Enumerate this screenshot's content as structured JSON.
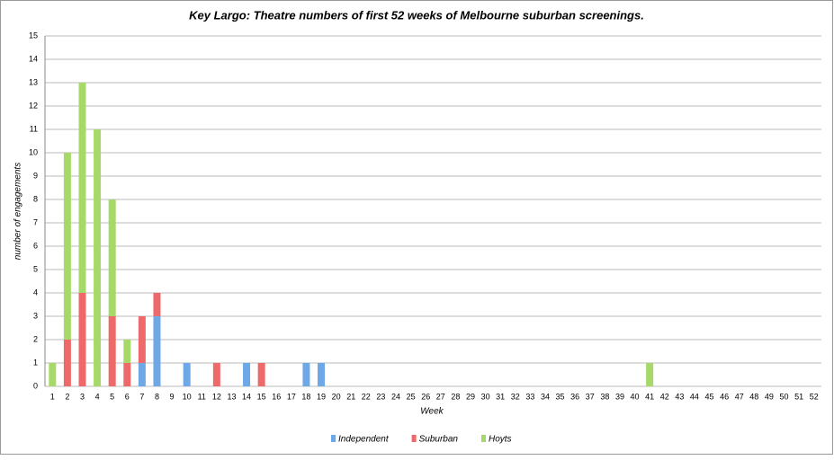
{
  "chart_data": {
    "type": "bar",
    "stacked": true,
    "title": "Key Largo: Theatre numbers of first 52 weeks of Melbourne suburban screenings.",
    "x_label": "Week",
    "y_label": "number of engagements",
    "categories": [
      1,
      2,
      3,
      4,
      5,
      6,
      7,
      8,
      9,
      10,
      11,
      12,
      13,
      14,
      15,
      16,
      17,
      18,
      19,
      20,
      21,
      22,
      23,
      24,
      25,
      26,
      27,
      28,
      29,
      30,
      31,
      32,
      33,
      34,
      35,
      36,
      37,
      38,
      39,
      40,
      41,
      42,
      43,
      44,
      45,
      46,
      47,
      48,
      49,
      50,
      51,
      52
    ],
    "series": [
      {
        "name": "Independent",
        "color": "#6fa8e6",
        "values": [
          0,
          0,
          0,
          0,
          0,
          0,
          1,
          3,
          0,
          1,
          0,
          0,
          0,
          1,
          0,
          0,
          0,
          1,
          1,
          0,
          0,
          0,
          0,
          0,
          0,
          0,
          0,
          0,
          0,
          0,
          0,
          0,
          0,
          0,
          0,
          0,
          0,
          0,
          0,
          0,
          0,
          0,
          0,
          0,
          0,
          0,
          0,
          0,
          0,
          0,
          0,
          0
        ]
      },
      {
        "name": "Suburban",
        "color": "#ee6a6a",
        "values": [
          0,
          2,
          4,
          0,
          3,
          1,
          2,
          1,
          0,
          0,
          0,
          1,
          0,
          0,
          1,
          0,
          0,
          0,
          0,
          0,
          0,
          0,
          0,
          0,
          0,
          0,
          0,
          0,
          0,
          0,
          0,
          0,
          0,
          0,
          0,
          0,
          0,
          0,
          0,
          0,
          0,
          0,
          0,
          0,
          0,
          0,
          0,
          0,
          0,
          0,
          0,
          0
        ]
      },
      {
        "name": "Hoyts",
        "color": "#a6d96a",
        "values": [
          1,
          8,
          9,
          11,
          5,
          1,
          0,
          0,
          0,
          0,
          0,
          0,
          0,
          0,
          0,
          0,
          0,
          0,
          0,
          0,
          0,
          0,
          0,
          0,
          0,
          0,
          0,
          0,
          0,
          0,
          0,
          0,
          0,
          0,
          0,
          0,
          0,
          0,
          0,
          0,
          1,
          0,
          0,
          0,
          0,
          0,
          0,
          0,
          0,
          0,
          0,
          0
        ]
      }
    ],
    "ylim": [
      0,
      15
    ],
    "yticks": [
      0,
      1,
      2,
      3,
      4,
      5,
      6,
      7,
      8,
      9,
      10,
      11,
      12,
      13,
      14,
      15
    ],
    "grid": true,
    "legend": "bottom"
  }
}
